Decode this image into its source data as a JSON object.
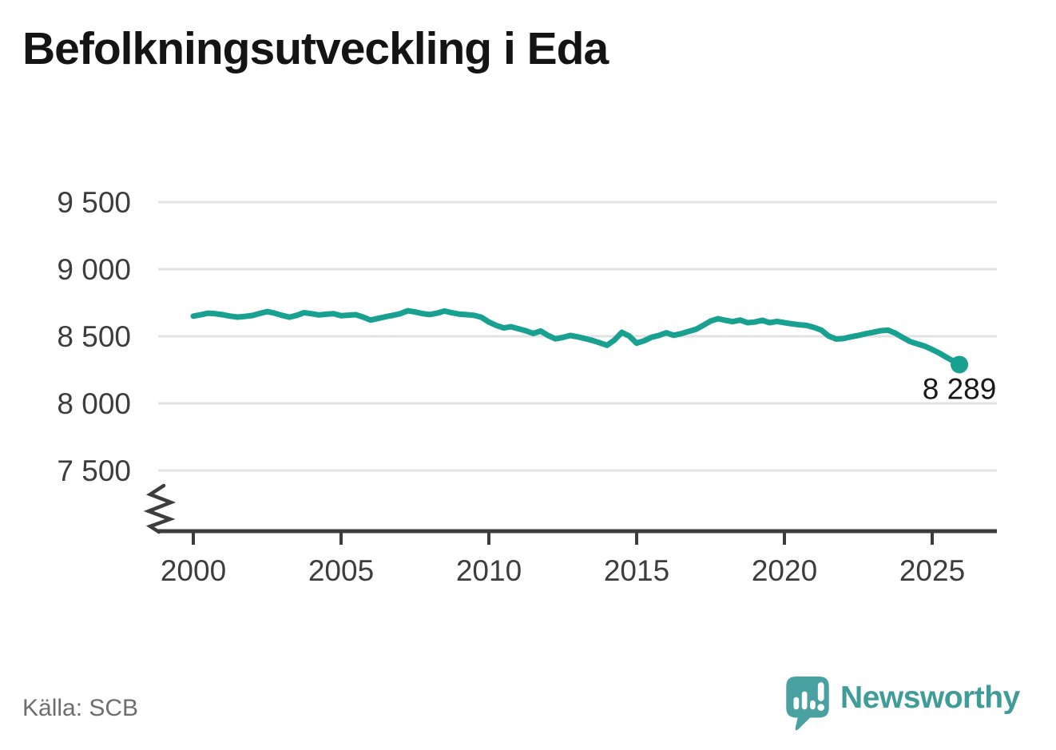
{
  "page": {
    "title": "Befolkningsutveckling i Eda",
    "source": "Källa: SCB",
    "brand": {
      "name": "Newsworthy",
      "icon_color": "#4aa1a1",
      "text_color": "#3f9c98"
    }
  },
  "chart_data": {
    "type": "line",
    "title": "Befolkningsutveckling i Eda",
    "source": "Källa: SCB",
    "grid": "horizontal",
    "line_color": "#18a191",
    "x_axis": {
      "label": "",
      "ticks": [
        2000,
        2005,
        2010,
        2015,
        2020,
        2025
      ],
      "tick_labels": [
        "2000",
        "2005",
        "2010",
        "2015",
        "2020",
        "2025"
      ],
      "range": [
        1998.9,
        2027.2
      ]
    },
    "y_axis": {
      "label": "",
      "ticks": [
        9500,
        9000,
        8500,
        8000,
        7500
      ],
      "tick_labels": [
        "9 500",
        "9 000",
        "8 500",
        "8 000",
        "7 500"
      ],
      "range_displayed": [
        7500,
        9500
      ],
      "axis_break": true
    },
    "end_point": {
      "x": 2025.92,
      "y": 8289,
      "label": "8 289"
    },
    "series": [
      {
        "name": "Befolkning i Eda",
        "color": "#18a191",
        "points": [
          [
            2000,
            8650
          ],
          [
            2000.25,
            8660
          ],
          [
            2000.5,
            8672
          ],
          [
            2000.75,
            8668
          ],
          [
            2001,
            8660
          ],
          [
            2001.25,
            8650
          ],
          [
            2001.5,
            8643
          ],
          [
            2001.75,
            8648
          ],
          [
            2002,
            8655
          ],
          [
            2002.25,
            8670
          ],
          [
            2002.5,
            8684
          ],
          [
            2002.75,
            8672
          ],
          [
            2003,
            8656
          ],
          [
            2003.25,
            8642
          ],
          [
            2003.5,
            8656
          ],
          [
            2003.75,
            8676
          ],
          [
            2004,
            8668
          ],
          [
            2004.25,
            8659
          ],
          [
            2004.5,
            8664
          ],
          [
            2004.75,
            8668
          ],
          [
            2005,
            8653
          ],
          [
            2005.25,
            8657
          ],
          [
            2005.5,
            8661
          ],
          [
            2005.75,
            8642
          ],
          [
            2006,
            8621
          ],
          [
            2006.25,
            8633
          ],
          [
            2006.5,
            8645
          ],
          [
            2006.75,
            8656
          ],
          [
            2007,
            8668
          ],
          [
            2007.25,
            8690
          ],
          [
            2007.5,
            8681
          ],
          [
            2007.75,
            8669
          ],
          [
            2008,
            8662
          ],
          [
            2008.25,
            8672
          ],
          [
            2008.5,
            8688
          ],
          [
            2008.75,
            8675
          ],
          [
            2009,
            8665
          ],
          [
            2009.25,
            8661
          ],
          [
            2009.5,
            8656
          ],
          [
            2009.75,
            8641
          ],
          [
            2010,
            8606
          ],
          [
            2010.25,
            8581
          ],
          [
            2010.5,
            8562
          ],
          [
            2010.75,
            8571
          ],
          [
            2011,
            8556
          ],
          [
            2011.25,
            8541
          ],
          [
            2011.5,
            8521
          ],
          [
            2011.75,
            8539
          ],
          [
            2012,
            8506
          ],
          [
            2012.25,
            8481
          ],
          [
            2012.5,
            8491
          ],
          [
            2012.75,
            8506
          ],
          [
            2013,
            8496
          ],
          [
            2013.25,
            8483
          ],
          [
            2013.5,
            8469
          ],
          [
            2013.75,
            8451
          ],
          [
            2014,
            8433
          ],
          [
            2014.25,
            8472
          ],
          [
            2014.5,
            8529
          ],
          [
            2014.75,
            8501
          ],
          [
            2015,
            8449
          ],
          [
            2015.25,
            8466
          ],
          [
            2015.5,
            8492
          ],
          [
            2015.75,
            8506
          ],
          [
            2016,
            8526
          ],
          [
            2016.25,
            8507
          ],
          [
            2016.5,
            8519
          ],
          [
            2016.75,
            8536
          ],
          [
            2017,
            8551
          ],
          [
            2017.25,
            8581
          ],
          [
            2017.5,
            8613
          ],
          [
            2017.75,
            8631
          ],
          [
            2018,
            8619
          ],
          [
            2018.25,
            8609
          ],
          [
            2018.5,
            8621
          ],
          [
            2018.75,
            8601
          ],
          [
            2019,
            8606
          ],
          [
            2019.25,
            8619
          ],
          [
            2019.5,
            8601
          ],
          [
            2019.75,
            8611
          ],
          [
            2020,
            8601
          ],
          [
            2020.25,
            8593
          ],
          [
            2020.5,
            8586
          ],
          [
            2020.75,
            8581
          ],
          [
            2021,
            8566
          ],
          [
            2021.25,
            8546
          ],
          [
            2021.5,
            8501
          ],
          [
            2021.75,
            8479
          ],
          [
            2022,
            8483
          ],
          [
            2022.25,
            8496
          ],
          [
            2022.5,
            8506
          ],
          [
            2022.75,
            8519
          ],
          [
            2023,
            8529
          ],
          [
            2023.25,
            8541
          ],
          [
            2023.5,
            8546
          ],
          [
            2023.75,
            8523
          ],
          [
            2024,
            8491
          ],
          [
            2024.25,
            8461
          ],
          [
            2024.5,
            8443
          ],
          [
            2024.75,
            8426
          ],
          [
            2025,
            8401
          ],
          [
            2025.25,
            8373
          ],
          [
            2025.5,
            8341
          ],
          [
            2025.75,
            8311
          ],
          [
            2025.92,
            8289
          ]
        ]
      }
    ]
  }
}
